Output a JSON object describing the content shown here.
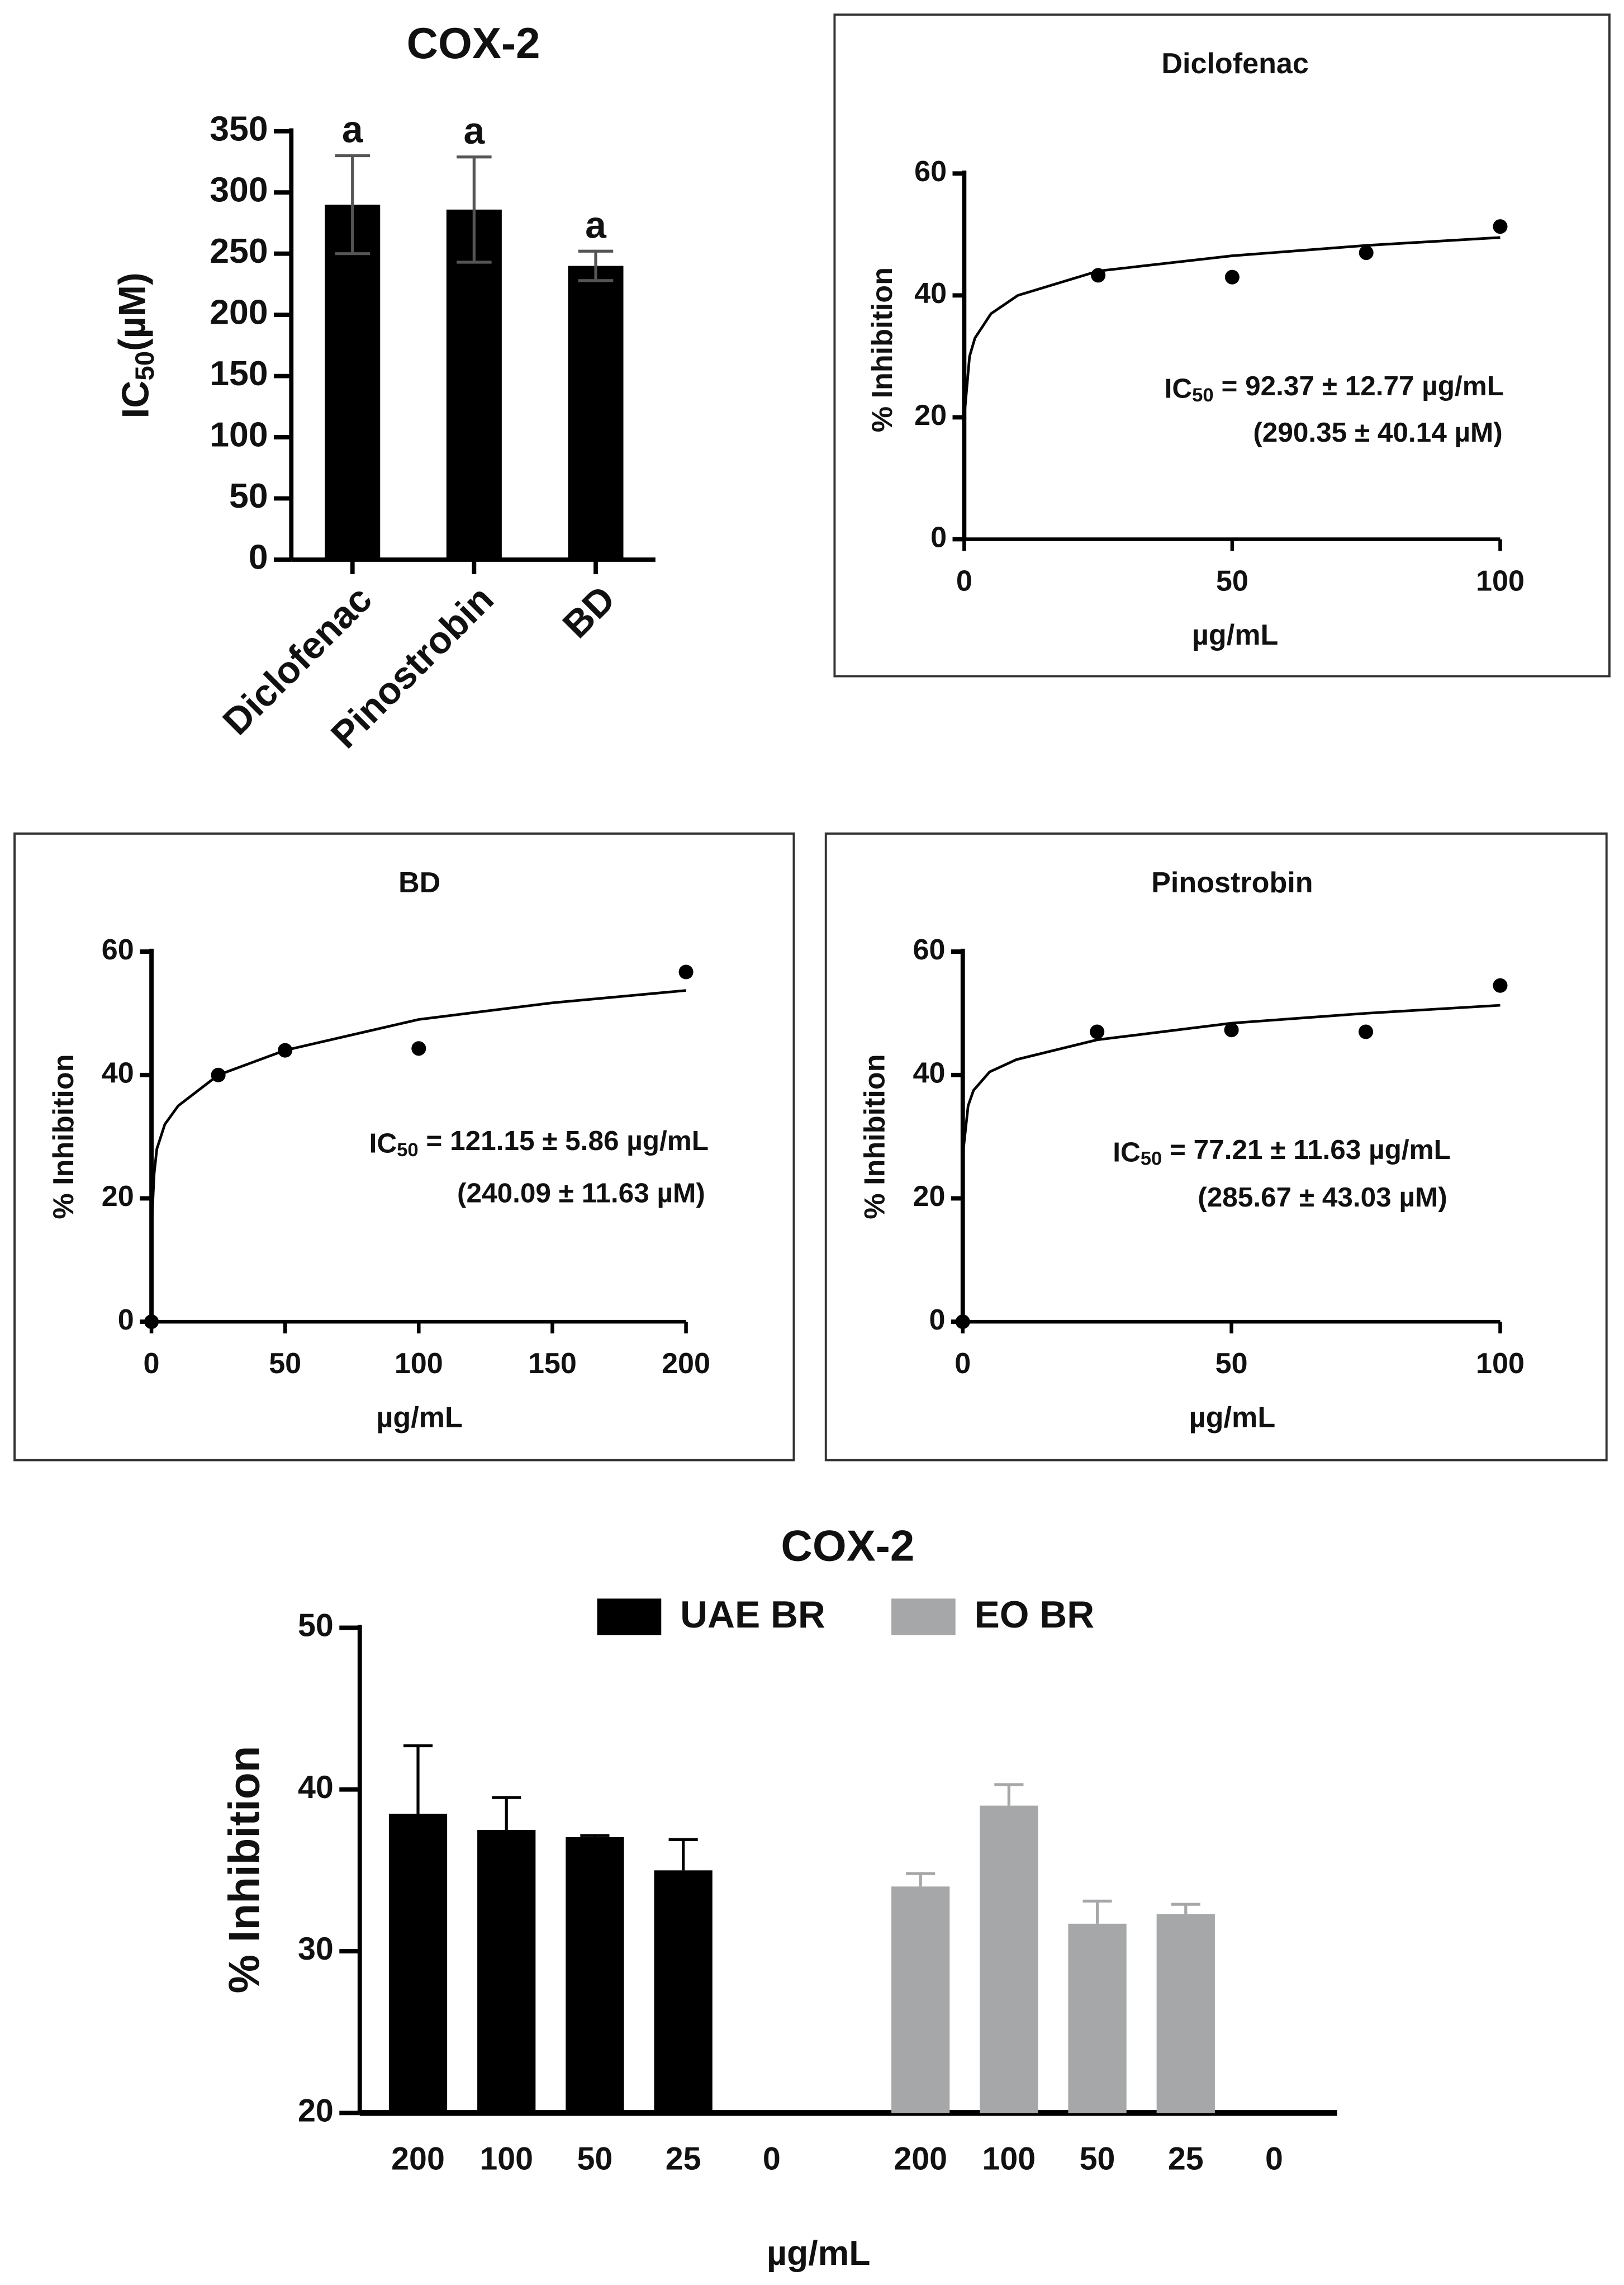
{
  "chart_data": [
    {
      "type": "bar",
      "title": "COX-2",
      "y_label": [
        "IC",
        "50",
        "(µM)"
      ],
      "categories": [
        "Diclofenac",
        "Pinostrobin",
        "BD"
      ],
      "values": [
        290,
        286,
        240
      ],
      "errors": [
        40,
        43,
        12
      ],
      "letters": [
        "a",
        "a",
        "a"
      ],
      "color": "#000000",
      "error_color": "#555555",
      "ylim": [
        0,
        350
      ],
      "yticks": [
        0,
        50,
        100,
        150,
        200,
        250,
        300,
        350
      ]
    },
    {
      "type": "scatter",
      "title": "Diclofenac",
      "x_label": "µg/mL",
      "y_label": "% Inhibition",
      "x": [
        25,
        50,
        75,
        100
      ],
      "values": [
        43.3,
        43,
        47,
        51.3
      ],
      "fit": {
        "x": [
          0,
          1,
          2,
          5,
          10,
          25,
          50,
          75,
          100
        ],
        "values": [
          20,
          30,
          33,
          37,
          40,
          44,
          46.5,
          48.2,
          49.5
        ]
      },
      "annotations": [
        [
          "IC",
          "50",
          " = 92.37 ± 12.77 µg/mL"
        ],
        [
          "(290.35 ± 40.14 µM)"
        ]
      ],
      "color": "#000000",
      "xlim": [
        0,
        100
      ],
      "xticks": [
        0,
        50,
        100
      ],
      "ylim": [
        0,
        60
      ],
      "yticks": [
        0,
        20,
        40,
        60
      ]
    },
    {
      "type": "scatter",
      "title": "BD",
      "x_label": "µg/mL",
      "y_label": "% Inhibition",
      "x": [
        0,
        25,
        50,
        100,
        200
      ],
      "values": [
        0,
        40,
        44,
        44.3,
        56.7
      ],
      "fit": {
        "x": [
          0,
          1,
          2,
          5,
          10,
          25,
          50,
          100,
          150,
          200
        ],
        "values": [
          15,
          24,
          28,
          32,
          35,
          40,
          44,
          49,
          51.7,
          53.7
        ]
      },
      "annotations": [
        [
          "IC",
          "50",
          " = 121.15 ± 5.86 µg/mL"
        ],
        [
          "(240.09 ± 11.63 µM)"
        ]
      ],
      "color": "#000000",
      "xlim": [
        0,
        200
      ],
      "xticks": [
        0,
        50,
        100,
        150,
        200
      ],
      "ylim": [
        0,
        60
      ],
      "yticks": [
        0,
        20,
        40,
        60
      ]
    },
    {
      "type": "scatter",
      "title": "Pinostrobin",
      "x_label": "µg/mL",
      "y_label": "% Inhibition",
      "x": [
        0,
        25,
        50,
        75,
        100
      ],
      "values": [
        0,
        47,
        47.3,
        47,
        54.5
      ],
      "fit": {
        "x": [
          0,
          1,
          2,
          5,
          10,
          25,
          50,
          75,
          100
        ],
        "values": [
          27,
          35,
          37.5,
          40.5,
          42.5,
          45.7,
          48.4,
          50,
          51.3
        ]
      },
      "annotations": [
        [
          "IC",
          "50",
          " = 77.21 ± 11.63 µg/mL"
        ],
        [
          "(285.67 ± 43.03 µM)"
        ]
      ],
      "color": "#000000",
      "xlim": [
        0,
        100
      ],
      "xticks": [
        0,
        50,
        100
      ],
      "ylim": [
        0,
        60
      ],
      "yticks": [
        0,
        20,
        40,
        60
      ]
    },
    {
      "type": "grouped_bar",
      "title": "COX-2",
      "x_label": "µg/mL",
      "y_label": "% Inhibition",
      "categories": [
        "200",
        "100",
        "50",
        "25",
        "0",
        "200",
        "100",
        "50",
        "25",
        "0"
      ],
      "series": [
        {
          "name": "UAE BR",
          "color": "#000000",
          "values": [
            38.5,
            37.5,
            37.05,
            35.0,
            null,
            null,
            null,
            null,
            null,
            null
          ],
          "errors": [
            4.2,
            2.0,
            0.1,
            1.9,
            null,
            null,
            null,
            null,
            null,
            null
          ]
        },
        {
          "name": "EO BR",
          "color": "#a6a7a9",
          "values": [
            null,
            null,
            null,
            null,
            null,
            34.0,
            39.0,
            31.7,
            32.3,
            null
          ],
          "errors": [
            null,
            null,
            null,
            null,
            null,
            0.8,
            1.3,
            1.4,
            0.6,
            null
          ]
        }
      ],
      "ylim": [
        20,
        50
      ],
      "yticks": [
        20,
        30,
        40,
        50
      ]
    }
  ]
}
